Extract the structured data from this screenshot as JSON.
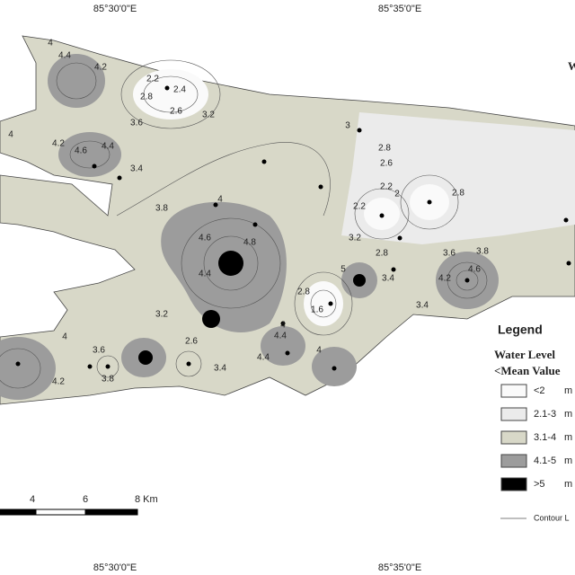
{
  "coordinates": {
    "top": [
      "85°30'0\"E",
      "85°35'0\"E"
    ],
    "bottom": [
      "85°30'0\"E",
      "85°35'0\"E"
    ]
  },
  "north_label": "W",
  "legend": {
    "title": "Legend",
    "heading": "Water Level",
    "subheading": "<Mean Value",
    "items": [
      {
        "label": "<2",
        "unit": "m"
      },
      {
        "label": "2.1-3",
        "unit": "m"
      },
      {
        "label": "3.1-4",
        "unit": "m"
      },
      {
        "label": "4.1-5",
        "unit": "m"
      },
      {
        "label": ">5",
        "unit": "m"
      }
    ],
    "contour": "Contour L"
  },
  "scale_bar": [
    "4",
    "6",
    "8 Km"
  ],
  "contour_labels": [
    "4",
    "4.4",
    "4.2",
    "2.2",
    "2.4",
    "2.8",
    "2.6",
    "3.2",
    "3.6",
    "4",
    "4.2",
    "4.6",
    "4.4",
    "3.4",
    "3",
    "2.8",
    "2.6",
    "2.2",
    "2.8",
    "2.2",
    "2",
    "3.8",
    "4",
    "4.6",
    "4.8",
    "4.4",
    "3.2",
    "2.8",
    "3.6",
    "3.8",
    "4.2",
    "4.6",
    "3.4",
    "3.4",
    "2.8",
    "1.6",
    "5",
    "4",
    "4.4",
    "3.2",
    "2.6",
    "3.6",
    "4",
    "4.2",
    "4.4",
    "3.8",
    "3.4",
    "4"
  ]
}
